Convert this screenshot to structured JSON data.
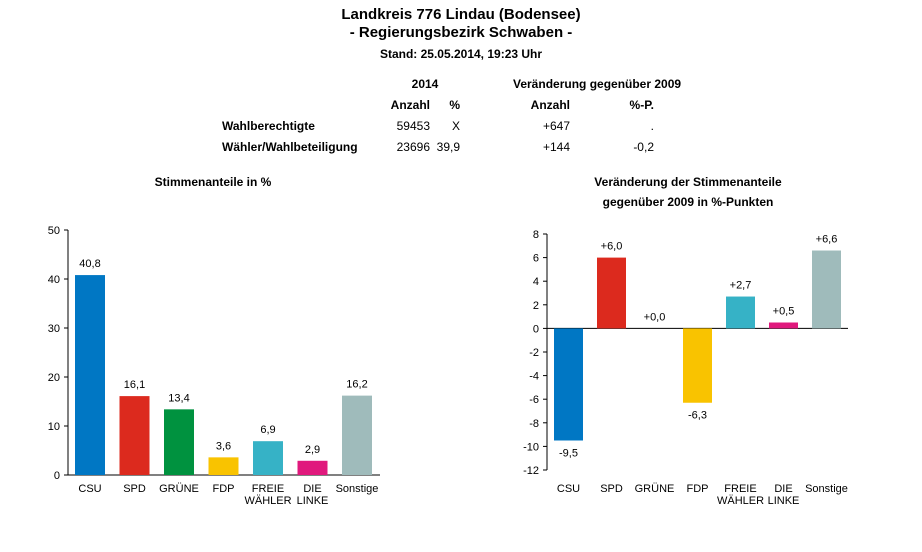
{
  "header": {
    "title": "Landkreis 776 Lindau (Bodensee)",
    "subtitle": "- Regierungsbezirk Schwaben -",
    "stand": "Stand: 25.05.2014, 19:23 Uhr"
  },
  "summary_table": {
    "group_2014": "2014",
    "group_change": "Veränderung gegenüber 2009",
    "columns": [
      "Anzahl",
      "%",
      "Anzahl",
      "%-P."
    ],
    "rows": [
      {
        "label": "Wahlberechtigte",
        "anzahl": "59453",
        "pct": "X",
        "chg_anzahl": "+647",
        "chg_pct": "."
      },
      {
        "label": "Wähler/Wahlbeteiligung",
        "anzahl": "23696",
        "pct": "39,9",
        "chg_anzahl": "+144",
        "chg_pct": "-0,2"
      }
    ]
  },
  "chart_data": [
    {
      "type": "bar",
      "title": "Stimmenanteile in %",
      "xlabel": "",
      "ylabel": "",
      "categories": [
        "CSU",
        "SPD",
        "GRÜNE",
        "FDP",
        "FREIE WÄHLER",
        "DIE LINKE",
        "Sonstige"
      ],
      "category_lines": [
        [
          "CSU"
        ],
        [
          "SPD"
        ],
        [
          "GRÜNE"
        ],
        [
          "FDP"
        ],
        [
          "FREIE",
          "WÄHLER"
        ],
        [
          "DIE",
          "LINKE"
        ],
        [
          "Sonstige"
        ]
      ],
      "values": [
        40.8,
        16.1,
        13.4,
        3.6,
        6.9,
        2.9,
        16.2
      ],
      "value_labels": [
        "40,8",
        "16,1",
        "13,4",
        "3,6",
        "6,9",
        "2,9",
        "16,2"
      ],
      "colors": [
        "#0077c4",
        "#dc2a1e",
        "#00923f",
        "#f9c300",
        "#36b2c6",
        "#e0197d",
        "#9fbbbb"
      ],
      "ylim": [
        0,
        50
      ],
      "yticks": [
        0,
        10,
        20,
        30,
        40,
        50
      ],
      "grid": false,
      "legend": "none"
    },
    {
      "type": "bar",
      "title": "Veränderung der Stimmenanteile",
      "subtitle": "gegenüber 2009 in %-Punkten",
      "xlabel": "",
      "ylabel": "",
      "categories": [
        "CSU",
        "SPD",
        "GRÜNE",
        "FDP",
        "FREIE WÄHLER",
        "DIE LINKE",
        "Sonstige"
      ],
      "category_lines": [
        [
          "CSU"
        ],
        [
          "SPD"
        ],
        [
          "GRÜNE"
        ],
        [
          "FDP"
        ],
        [
          "FREIE",
          "WÄHLER"
        ],
        [
          "DIE",
          "LINKE"
        ],
        [
          "Sonstige"
        ]
      ],
      "values": [
        -9.5,
        6.0,
        0.0,
        -6.3,
        2.7,
        0.5,
        6.6
      ],
      "value_labels": [
        "-9,5",
        "+6,0",
        "+0,0",
        "-6,3",
        "+2,7",
        "+0,5",
        "+6,6"
      ],
      "colors": [
        "#0077c4",
        "#dc2a1e",
        "#00923f",
        "#f9c300",
        "#36b2c6",
        "#e0197d",
        "#9fbbbb"
      ],
      "ylim": [
        -12,
        8
      ],
      "yticks": [
        -12,
        -10,
        -8,
        -6,
        -4,
        -2,
        0,
        2,
        4,
        6,
        8
      ],
      "grid": false,
      "legend": "none"
    }
  ]
}
